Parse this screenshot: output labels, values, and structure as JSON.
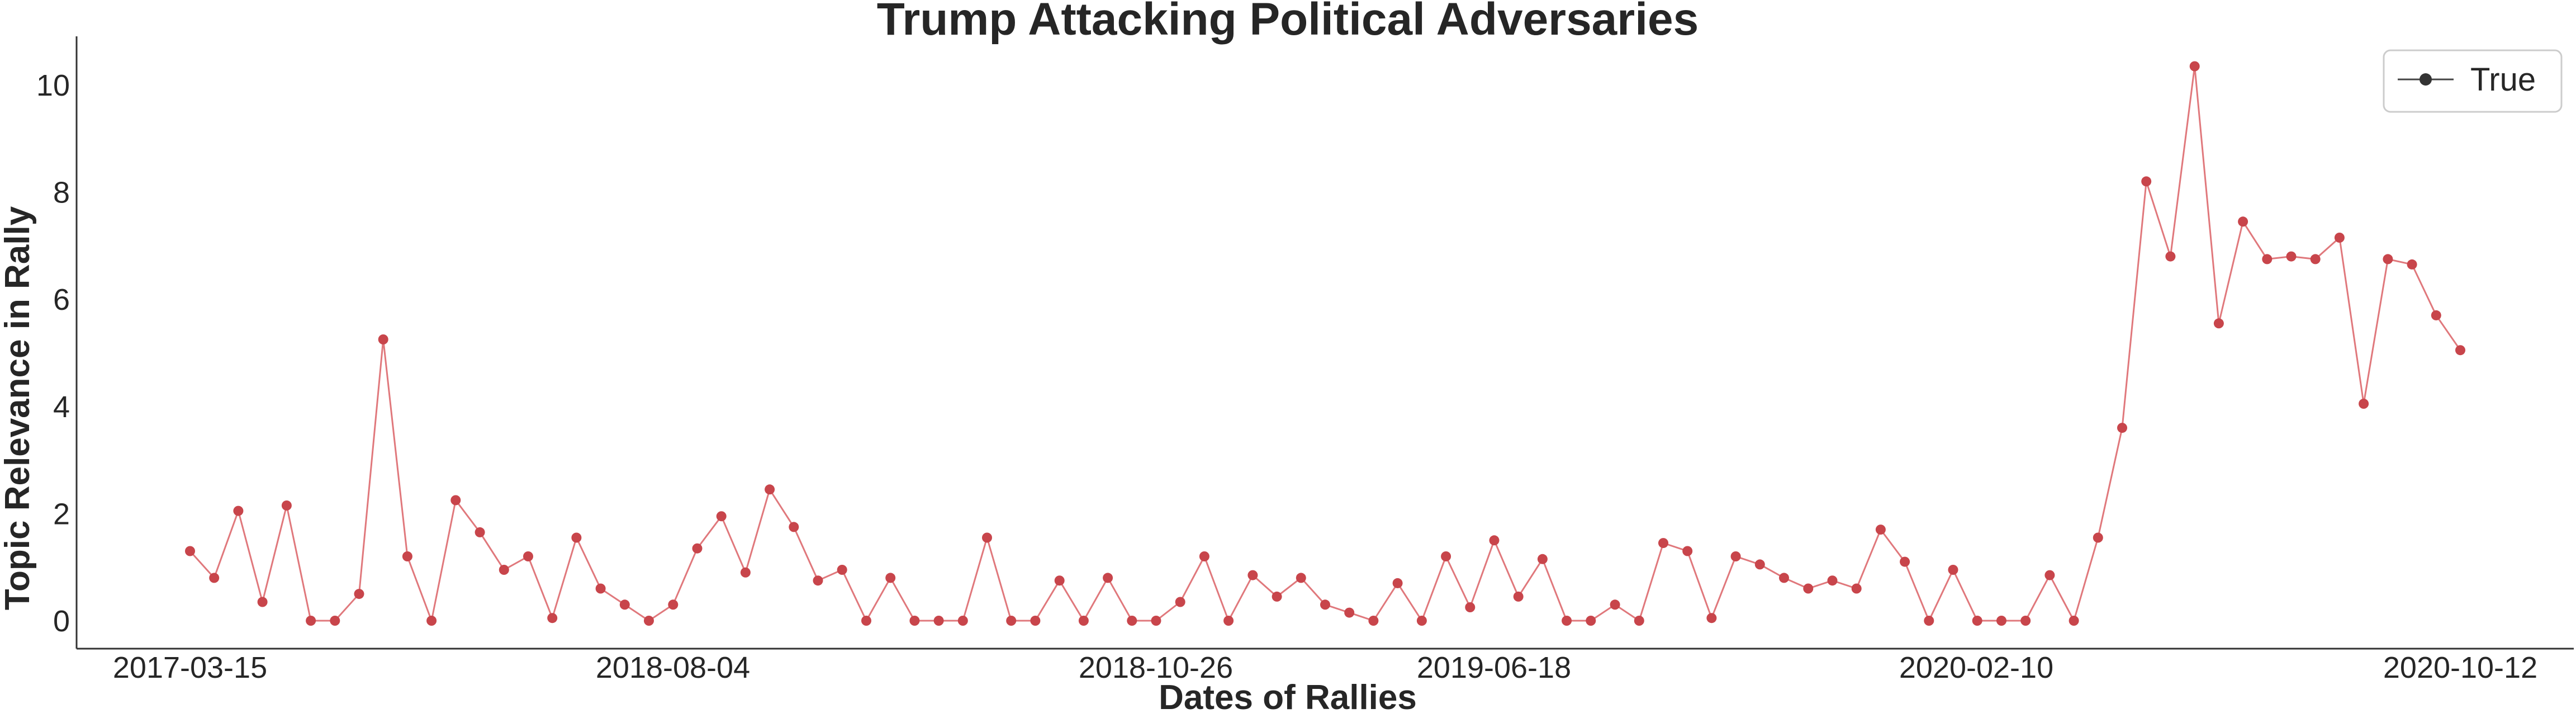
{
  "chart_data": {
    "type": "line",
    "title": "Trump Attacking Political Adversaries",
    "xlabel": "Dates of Rallies",
    "ylabel": "Topic Relevance in Rally",
    "x_tick_labels": [
      "2017-03-15",
      "2018-08-04",
      "2018-10-26",
      "2019-06-18",
      "2020-02-10",
      "2020-10-12"
    ],
    "y_ticks": [
      0,
      2,
      4,
      6,
      8,
      10
    ],
    "ylim": [
      -0.5,
      10.8
    ],
    "grid": false,
    "legend": {
      "position": "top-right",
      "entries": [
        "True"
      ]
    },
    "series": [
      {
        "name": "True",
        "line_color": "#e0787c",
        "marker_color": "#c8454b",
        "values": [
          1.3,
          0.8,
          2.05,
          0.35,
          2.15,
          0,
          0,
          0.5,
          5.25,
          1.2,
          0,
          2.25,
          1.65,
          0.95,
          1.2,
          0.05,
          1.55,
          0.6,
          0.3,
          0,
          0.3,
          1.35,
          1.95,
          0.9,
          2.45,
          1.75,
          0.75,
          0.95,
          0,
          0.8,
          0,
          0,
          0,
          1.55,
          0,
          0,
          0.75,
          0,
          0.8,
          0,
          0,
          0.35,
          1.2,
          0,
          0.85,
          0.45,
          0.8,
          0.3,
          0.15,
          0,
          0.7,
          0,
          1.2,
          0.25,
          1.5,
          0.45,
          1.15,
          0,
          0,
          0.3,
          0,
          1.45,
          1.3,
          0.05,
          1.2,
          1.05,
          0.8,
          0.6,
          0.75,
          0.6,
          1.7,
          1.1,
          0,
          0.95,
          0,
          0,
          0,
          0.85,
          0,
          1.55,
          3.6,
          8.2,
          6.8,
          10.35,
          5.55,
          7.45,
          6.75,
          6.8,
          6.75,
          7.15,
          4.05,
          6.75,
          6.65,
          5.7,
          5.05
        ]
      }
    ]
  }
}
